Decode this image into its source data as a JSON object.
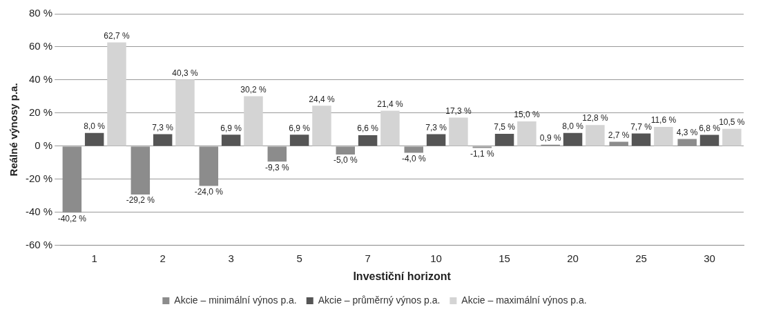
{
  "chart_data": {
    "type": "bar",
    "xlabel": "Investiční horizont",
    "ylabel": "Reálné výnosy p.a.",
    "categories": [
      "1",
      "2",
      "3",
      "5",
      "7",
      "10",
      "15",
      "20",
      "25",
      "30"
    ],
    "series": [
      {
        "name": "Akcie – minimální výnos p.a.",
        "color": "#8c8c8c",
        "values": [
          -40.2,
          -29.2,
          -24.0,
          -9.3,
          -5.0,
          -4.0,
          -1.1,
          0.9,
          2.7,
          4.3
        ],
        "value_labels": [
          "-40,2 %",
          "-29,2 %",
          "-24,0 %",
          "-9,3 %",
          "-5,0 %",
          "-4,0 %",
          "-1,1 %",
          "0,9 %",
          "2,7 %",
          "4,3 %"
        ]
      },
      {
        "name": "Akcie – průměrný výnos p.a.",
        "color": "#555555",
        "values": [
          8.0,
          7.3,
          6.9,
          6.9,
          6.6,
          7.3,
          7.5,
          8.0,
          7.7,
          6.8
        ],
        "value_labels": [
          "8,0 %",
          "7,3 %",
          "6,9 %",
          "6,9 %",
          "6,6 %",
          "7,3 %",
          "7,5 %",
          "8,0 %",
          "7,7 %",
          "6,8 %"
        ]
      },
      {
        "name": "Akcie – maximální výnos p.a.",
        "color": "#d4d4d4",
        "values": [
          62.7,
          40.3,
          30.2,
          24.4,
          21.4,
          17.3,
          15.0,
          12.8,
          11.6,
          10.5
        ],
        "value_labels": [
          "62,7 %",
          "40,3 %",
          "30,2 %",
          "24,4 %",
          "21,4 %",
          "17,3 %",
          "15,0 %",
          "12,8 %",
          "11,6 %",
          "10,5 %"
        ]
      }
    ],
    "ylim": [
      -60,
      80
    ],
    "yticks": [
      {
        "value": -60,
        "label": "-60 %"
      },
      {
        "value": -40,
        "label": "-40 %"
      },
      {
        "value": -20,
        "label": "-20 %"
      },
      {
        "value": 0,
        "label": "0 %"
      },
      {
        "value": 20,
        "label": "20 %"
      },
      {
        "value": 40,
        "label": "40 %"
      },
      {
        "value": 60,
        "label": "60 %"
      },
      {
        "value": 80,
        "label": "80 %"
      }
    ],
    "grid": "y",
    "legend": "bottom"
  }
}
